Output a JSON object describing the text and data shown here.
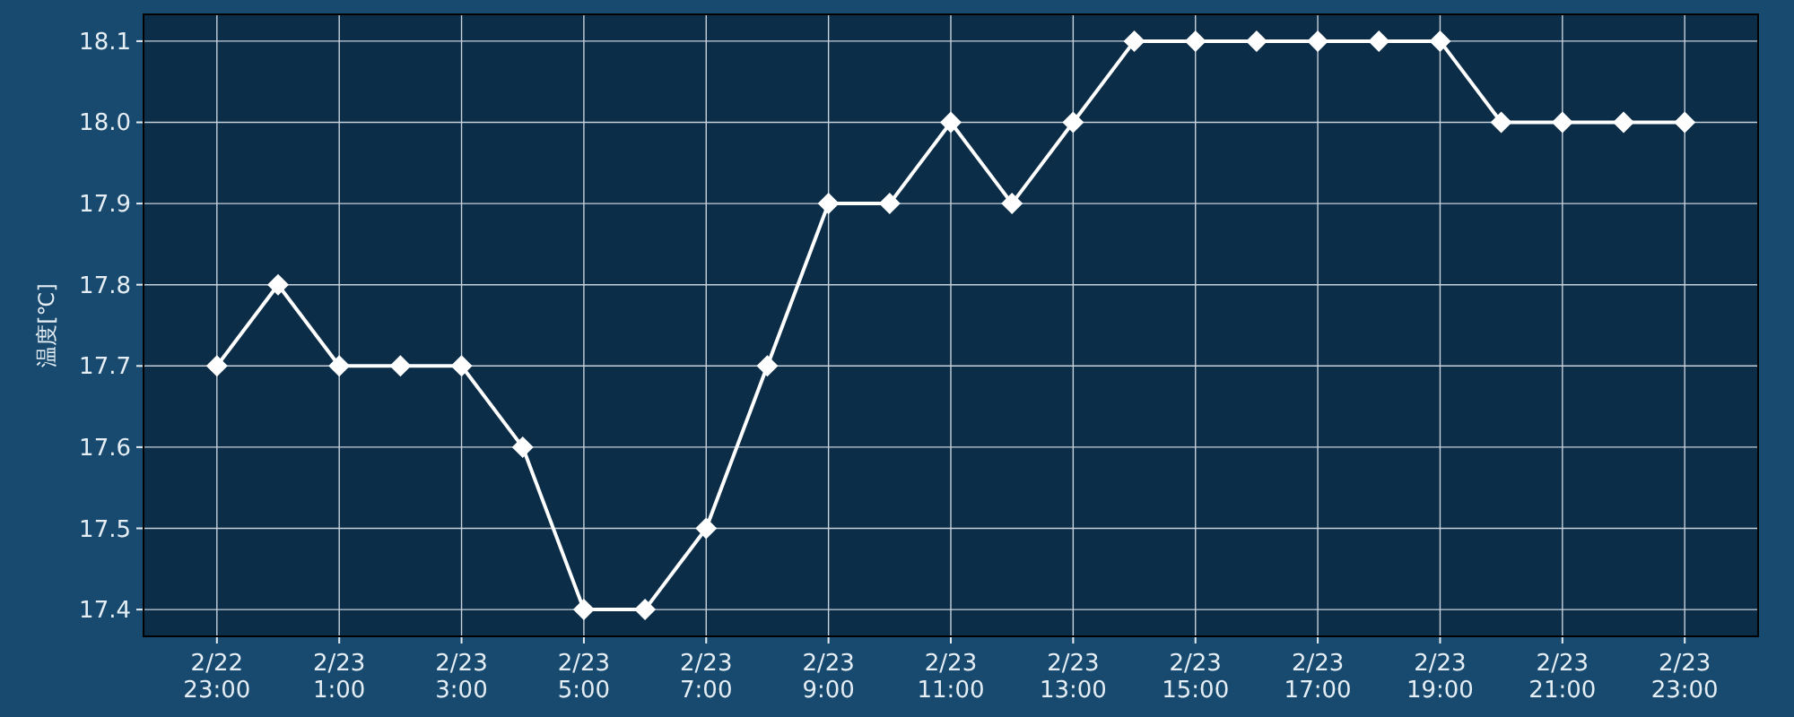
{
  "chart_data": {
    "type": "line",
    "ylabel": "温度[℃]",
    "categories": [
      "2/22 23:00",
      null,
      "2/23 1:00",
      null,
      "2/23 3:00",
      null,
      "2/23 5:00",
      null,
      "2/23 7:00",
      null,
      "2/23 9:00",
      null,
      "2/23 11:00",
      null,
      "2/23 13:00",
      null,
      "2/23 15:00",
      null,
      "2/23 17:00",
      null,
      "2/23 19:00",
      null,
      "2/23 21:00",
      null,
      "2/23 23:00"
    ],
    "series": [
      {
        "color": "#ffffff",
        "values": [
          17.7,
          17.8,
          17.7,
          17.7,
          17.7,
          17.6,
          17.4,
          17.4,
          17.5,
          17.7,
          17.9,
          17.9,
          18.0,
          17.9,
          18.0,
          18.1,
          18.1,
          18.1,
          18.1,
          18.1,
          18.1,
          18.0,
          18.0,
          18.0,
          18.0
        ]
      }
    ],
    "ylim": [
      17.367,
      18.133
    ],
    "yticks": [
      {
        "value": 17.4,
        "label": "17.4"
      },
      {
        "value": 17.5,
        "label": "17.5"
      },
      {
        "value": 17.6,
        "label": "17.6"
      },
      {
        "value": 17.7,
        "label": "17.7"
      },
      {
        "value": 17.8,
        "label": "17.8"
      },
      {
        "value": 17.9,
        "label": "17.9"
      },
      {
        "value": 18.0,
        "label": "18.0"
      },
      {
        "value": 18.1,
        "label": "18.1"
      }
    ],
    "grid": true,
    "marker": "diamond",
    "line_style": "solid"
  }
}
